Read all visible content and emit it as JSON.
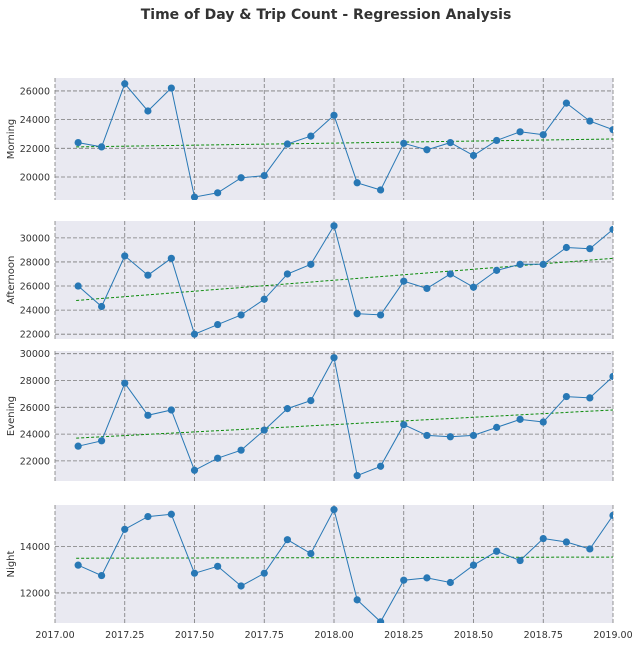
{
  "chart_data": {
    "type": "line",
    "title": "Time of Day & Trip Count - Regression Analysis",
    "xlabel": "",
    "xlim": [
      2017.0,
      2019.0
    ],
    "x_ticks": [
      2017.0,
      2017.25,
      2017.5,
      2017.75,
      2018.0,
      2018.25,
      2018.5,
      2018.75,
      2019.0
    ],
    "x_tick_labels": [
      "2017.00",
      "2017.25",
      "2017.50",
      "2017.75",
      "2018.00",
      "2018.25",
      "2018.50",
      "2018.75",
      "2019.00"
    ],
    "x": [
      2017.083,
      2017.167,
      2017.25,
      2017.333,
      2017.417,
      2017.5,
      2017.583,
      2017.667,
      2017.75,
      2017.833,
      2017.917,
      2018.0,
      2018.083,
      2018.167,
      2018.25,
      2018.333,
      2018.417,
      2018.5,
      2018.583,
      2018.667,
      2018.75,
      2018.833,
      2018.917,
      2019.0
    ],
    "grid": true,
    "series_color": "#2878b5",
    "trend_color": "#0b8a0b",
    "panels": [
      {
        "ylabel": "Morning",
        "ylim": [
          18400,
          26900
        ],
        "yticks": [
          20000,
          22000,
          24000,
          26000
        ],
        "values": [
          22400,
          22100,
          26500,
          24600,
          26200,
          18600,
          18900,
          19950,
          20100,
          22300,
          22850,
          24300,
          19600,
          19100,
          22350,
          21900,
          22400,
          21500,
          22550,
          23150,
          22950,
          25150,
          23900,
          23300
        ],
        "trend": [
          22100,
          22650
        ]
      },
      {
        "ylabel": "Afternoon",
        "ylim": [
          21600,
          31400
        ],
        "yticks": [
          22000,
          24000,
          26000,
          28000,
          30000
        ],
        "values": [
          26000,
          24300,
          28500,
          26900,
          28300,
          22000,
          22800,
          23600,
          24900,
          27000,
          27800,
          31000,
          23700,
          23600,
          26400,
          25800,
          27000,
          25900,
          27300,
          27800,
          27800,
          29200,
          29100,
          30700
        ],
        "trend": [
          24800,
          28300
        ]
      },
      {
        "ylabel": "Evening",
        "ylim": [
          20500,
          30200
        ],
        "yticks": [
          22000,
          24000,
          26000,
          28000,
          30000
        ],
        "values": [
          23100,
          23500,
          27800,
          25400,
          25800,
          21300,
          22200,
          22800,
          24300,
          25900,
          26500,
          29700,
          20900,
          21600,
          24700,
          23900,
          23800,
          23900,
          24500,
          25100,
          24900,
          26800,
          26700,
          28300
        ],
        "trend": [
          23700,
          25800
        ]
      },
      {
        "ylabel": "Night",
        "ylim": [
          10700,
          15800
        ],
        "yticks": [
          12000,
          14000
        ],
        "values": [
          13200,
          12750,
          14750,
          15300,
          15400,
          12850,
          13150,
          12300,
          12850,
          14300,
          13700,
          15600,
          11700,
          10750,
          12550,
          12650,
          12450,
          13200,
          13800,
          13400,
          14350,
          14200,
          13900,
          15350
        ],
        "trend": [
          13500,
          13550
        ]
      }
    ]
  }
}
